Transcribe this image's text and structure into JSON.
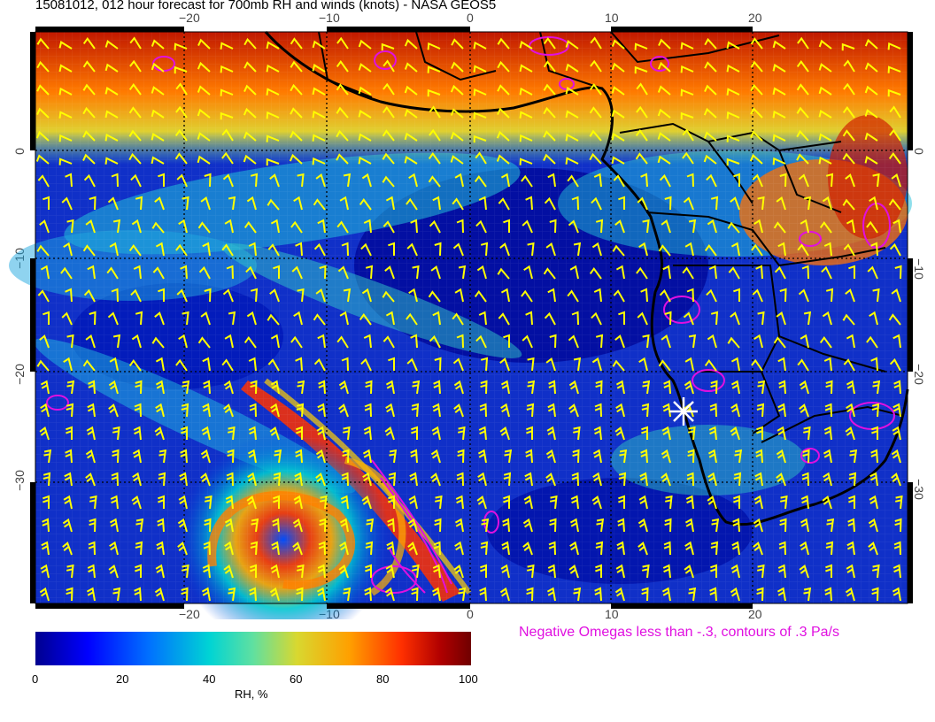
{
  "title": "15081012, 012 hour forecast for 700mb RH and winds (knots) - NASA GEOS5",
  "lon_ticks": [
    "−20",
    "−10",
    "0",
    "10",
    "20"
  ],
  "lat_ticks_left": [
    "0",
    "−10",
    "−20",
    "−30"
  ],
  "lat_ticks_right": [
    "0",
    "−10",
    "−20",
    "−30"
  ],
  "colorbar": {
    "ticks": [
      "0",
      "20",
      "40",
      "60",
      "80",
      "100"
    ],
    "label": "RH, %"
  },
  "omega_note": "Negative Omegas less than -.3, contours of .3 Pa/s",
  "colors": {
    "wind_barb": "#ffff00",
    "omega_contour": "#e010e0",
    "coast": "#000000",
    "marker": "#ffffff"
  },
  "marker_icon": "asterisk-star"
}
